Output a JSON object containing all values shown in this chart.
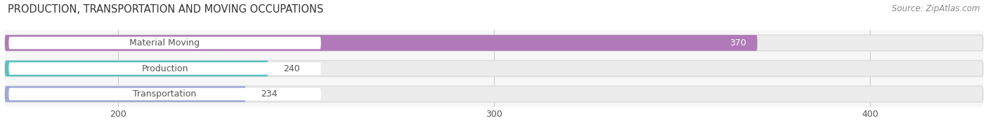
{
  "title": "PRODUCTION, TRANSPORTATION AND MOVING OCCUPATIONS",
  "source_text": "Source: ZipAtlas.com",
  "categories": [
    "Material Moving",
    "Production",
    "Transportation"
  ],
  "values": [
    370,
    240,
    234
  ],
  "bar_colors": [
    "#b07ab8",
    "#5bbfbf",
    "#9fa8d8"
  ],
  "bar_bg_color": "#ececec",
  "label_bg_color": "#ffffff",
  "label_color": "#555555",
  "label_color_inside": "#ffffff",
  "value_label_threshold": 300,
  "xmin": 170,
  "xmax": 430,
  "xticks": [
    200,
    300,
    400
  ],
  "title_fontsize": 10.5,
  "source_fontsize": 8.5,
  "bar_label_fontsize": 9,
  "value_fontsize": 9,
  "tick_fontsize": 9,
  "bar_height": 0.62,
  "background_color": "#ffffff",
  "plot_bg_color": "#f7f7f7"
}
